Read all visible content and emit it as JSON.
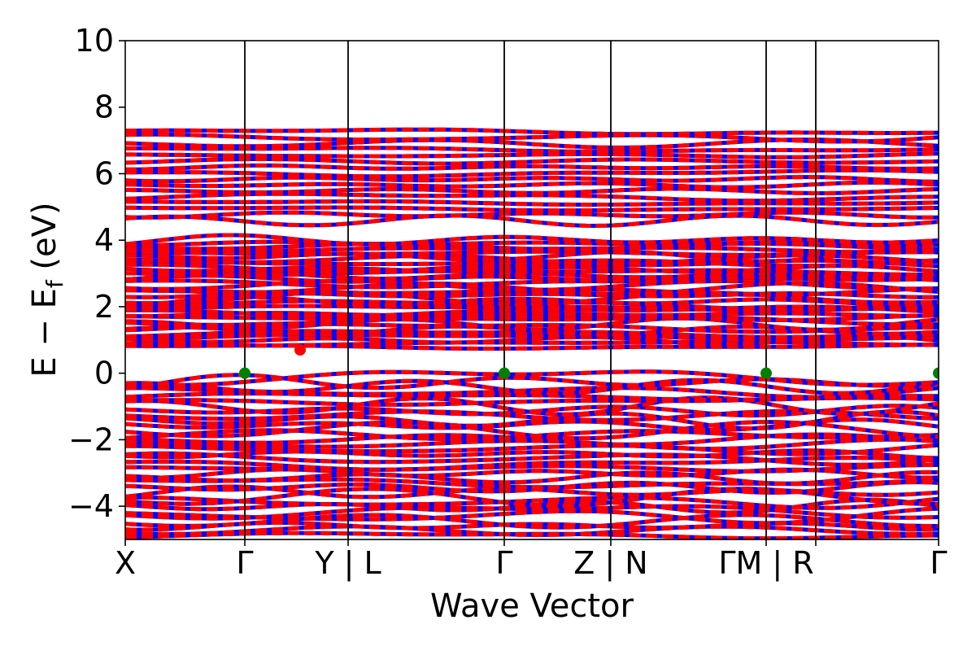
{
  "chart_data": {
    "type": "line",
    "xlabel": "Wave Vector",
    "ylabel_main": "E − E",
    "ylabel_sub": "f",
    "ylabel_unit": " (eV)",
    "ylim": [
      -5,
      10
    ],
    "yticks": [
      {
        "value": 10,
        "label": "10"
      },
      {
        "value": 8,
        "label": "8"
      },
      {
        "value": 6,
        "label": "6"
      },
      {
        "value": 4,
        "label": "4"
      },
      {
        "value": 2,
        "label": "2"
      },
      {
        "value": 0,
        "label": "0"
      },
      {
        "value": -2,
        "label": "−2"
      },
      {
        "value": -4,
        "label": "−4"
      }
    ],
    "xlim": [
      0,
      1
    ],
    "kpoints": [
      {
        "x": 0.0,
        "label": "X"
      },
      {
        "x": 0.147,
        "label": "Γ"
      },
      {
        "x": 0.274,
        "label": "Y | L"
      },
      {
        "x": 0.466,
        "label": "Γ"
      },
      {
        "x": 0.597,
        "label": "Z | N"
      },
      {
        "x": 0.788,
        "label": "ΓM | R"
      },
      {
        "x": 0.849,
        "label": ""
      },
      {
        "x": 1.0,
        "label": "Γ"
      }
    ],
    "series_colors": {
      "spin_up": "#ff0000",
      "spin_down": "#0000ff"
    },
    "band_regions": [
      {
        "name": "valence",
        "ymin": -4.95,
        "ymax": -0.05
      },
      {
        "name": "lower-conduction",
        "ymin": 0.75,
        "ymax": 4.05
      },
      {
        "name": "upper-conduction",
        "ymin": 4.5,
        "ymax": 7.35
      }
    ],
    "vbm_points": [
      {
        "x": 0.147,
        "y": 0.0
      },
      {
        "x": 0.466,
        "y": 0.0
      },
      {
        "x": 0.788,
        "y": 0.0
      },
      {
        "x": 1.0,
        "y": 0.0
      }
    ],
    "cbm_point": {
      "x": 0.215,
      "y": 0.7
    },
    "vbm_color": "#008000",
    "cbm_color": "#ff0000"
  }
}
